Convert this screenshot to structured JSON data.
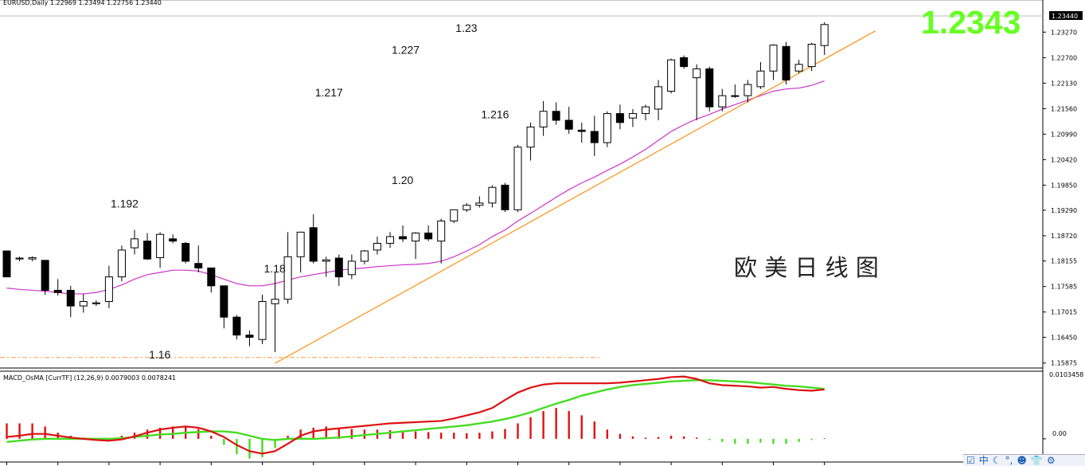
{
  "chart_data": {
    "type": "candlestick",
    "symbol_header": "EURUSD,Daily  1.22969 1.23494 1.22756 1.23440",
    "current_price_label": "1.23440",
    "big_price": "1.2343",
    "title_cn": "欧 美 日 线 图",
    "price_axis": {
      "ylim": [
        1.1587,
        1.2381
      ],
      "ticks": [
        "1.23270",
        "1.22700",
        "1.22130",
        "1.21560",
        "1.20990",
        "1.20420",
        "1.19850",
        "1.19290",
        "1.18720",
        "1.18155",
        "1.17585",
        "1.17015",
        "1.16450",
        "1.15875"
      ]
    },
    "annotations": [
      {
        "text": "1.192",
        "x": 9,
        "y": 1.1924
      },
      {
        "text": "1.217",
        "x": 25,
        "y": 1.2173
      },
      {
        "text": "1.227",
        "x": 31,
        "y": 1.2268
      },
      {
        "text": "1.23",
        "x": 36,
        "y": 1.2317
      },
      {
        "text": "1.216",
        "x": 38,
        "y": 1.2124
      },
      {
        "text": "1.20",
        "x": 31,
        "y": 1.1977
      },
      {
        "text": "1.18",
        "x": 21,
        "y": 1.1779
      },
      {
        "text": "1.16",
        "x": 12,
        "y": 1.1587
      }
    ],
    "candles": [
      {
        "o": 1.1838,
        "h": 1.1838,
        "l": 1.178,
        "c": 1.178
      },
      {
        "o": 1.182,
        "h": 1.1825,
        "l": 1.1815,
        "c": 1.1822
      },
      {
        "o": 1.182,
        "h": 1.1826,
        "l": 1.1815,
        "c": 1.1823
      },
      {
        "o": 1.1817,
        "h": 1.1817,
        "l": 1.174,
        "c": 1.175
      },
      {
        "o": 1.175,
        "h": 1.1775,
        "l": 1.1738,
        "c": 1.1745
      },
      {
        "o": 1.175,
        "h": 1.176,
        "l": 1.169,
        "c": 1.1715
      },
      {
        "o": 1.1715,
        "h": 1.1742,
        "l": 1.17,
        "c": 1.1725
      },
      {
        "o": 1.172,
        "h": 1.1728,
        "l": 1.1715,
        "c": 1.1722
      },
      {
        "o": 1.1725,
        "h": 1.1805,
        "l": 1.171,
        "c": 1.178
      },
      {
        "o": 1.178,
        "h": 1.185,
        "l": 1.177,
        "c": 1.184
      },
      {
        "o": 1.1845,
        "h": 1.1885,
        "l": 1.183,
        "c": 1.1865
      },
      {
        "o": 1.186,
        "h": 1.1878,
        "l": 1.1818,
        "c": 1.182
      },
      {
        "o": 1.1823,
        "h": 1.188,
        "l": 1.18,
        "c": 1.1875
      },
      {
        "o": 1.1865,
        "h": 1.1875,
        "l": 1.1855,
        "c": 1.186
      },
      {
        "o": 1.1855,
        "h": 1.1858,
        "l": 1.181,
        "c": 1.1815
      },
      {
        "o": 1.181,
        "h": 1.185,
        "l": 1.179,
        "c": 1.18
      },
      {
        "o": 1.18,
        "h": 1.18,
        "l": 1.1745,
        "c": 1.176
      },
      {
        "o": 1.176,
        "h": 1.176,
        "l": 1.1665,
        "c": 1.169
      },
      {
        "o": 1.169,
        "h": 1.1695,
        "l": 1.164,
        "c": 1.165
      },
      {
        "o": 1.165,
        "h": 1.166,
        "l": 1.1625,
        "c": 1.1645
      },
      {
        "o": 1.164,
        "h": 1.174,
        "l": 1.163,
        "c": 1.1725
      },
      {
        "o": 1.172,
        "h": 1.179,
        "l": 1.1612,
        "c": 1.173
      },
      {
        "o": 1.173,
        "h": 1.188,
        "l": 1.172,
        "c": 1.1825
      },
      {
        "o": 1.1825,
        "h": 1.188,
        "l": 1.179,
        "c": 1.188
      },
      {
        "o": 1.189,
        "h": 1.192,
        "l": 1.181,
        "c": 1.1815
      },
      {
        "o": 1.1815,
        "h": 1.1825,
        "l": 1.178,
        "c": 1.1818
      },
      {
        "o": 1.1822,
        "h": 1.183,
        "l": 1.176,
        "c": 1.178
      },
      {
        "o": 1.1785,
        "h": 1.183,
        "l": 1.1775,
        "c": 1.1815
      },
      {
        "o": 1.1815,
        "h": 1.184,
        "l": 1.1808,
        "c": 1.1838
      },
      {
        "o": 1.184,
        "h": 1.187,
        "l": 1.183,
        "c": 1.1855
      },
      {
        "o": 1.1855,
        "h": 1.188,
        "l": 1.1845,
        "c": 1.187
      },
      {
        "o": 1.187,
        "h": 1.1895,
        "l": 1.1858,
        "c": 1.1865
      },
      {
        "o": 1.186,
        "h": 1.188,
        "l": 1.182,
        "c": 1.1878
      },
      {
        "o": 1.1878,
        "h": 1.1895,
        "l": 1.186,
        "c": 1.1865
      },
      {
        "o": 1.186,
        "h": 1.191,
        "l": 1.181,
        "c": 1.1905
      },
      {
        "o": 1.1905,
        "h": 1.193,
        "l": 1.19,
        "c": 1.193
      },
      {
        "o": 1.193,
        "h": 1.1945,
        "l": 1.1925,
        "c": 1.194
      },
      {
        "o": 1.194,
        "h": 1.196,
        "l": 1.1935,
        "c": 1.1945
      },
      {
        "o": 1.1945,
        "h": 1.1985,
        "l": 1.1935,
        "c": 1.198
      },
      {
        "o": 1.1985,
        "h": 1.199,
        "l": 1.1925,
        "c": 1.193
      },
      {
        "o": 1.193,
        "h": 1.2075,
        "l": 1.1925,
        "c": 1.207
      },
      {
        "o": 1.207,
        "h": 1.2125,
        "l": 1.204,
        "c": 1.2115
      },
      {
        "o": 1.2115,
        "h": 1.2173,
        "l": 1.2095,
        "c": 1.215
      },
      {
        "o": 1.215,
        "h": 1.217,
        "l": 1.212,
        "c": 1.213
      },
      {
        "o": 1.213,
        "h": 1.216,
        "l": 1.21,
        "c": 1.211
      },
      {
        "o": 1.2108,
        "h": 1.2125,
        "l": 1.208,
        "c": 1.2105
      },
      {
        "o": 1.2105,
        "h": 1.214,
        "l": 1.205,
        "c": 1.208
      },
      {
        "o": 1.208,
        "h": 1.215,
        "l": 1.207,
        "c": 1.2145
      },
      {
        "o": 1.2145,
        "h": 1.2165,
        "l": 1.211,
        "c": 1.2125
      },
      {
        "o": 1.2135,
        "h": 1.2155,
        "l": 1.2115,
        "c": 1.2145
      },
      {
        "o": 1.2145,
        "h": 1.2165,
        "l": 1.213,
        "c": 1.216
      },
      {
        "o": 1.2155,
        "h": 1.222,
        "l": 1.213,
        "c": 1.2205
      },
      {
        "o": 1.2195,
        "h": 1.2268,
        "l": 1.219,
        "c": 1.2265
      },
      {
        "o": 1.227,
        "h": 1.2275,
        "l": 1.2245,
        "c": 1.225
      },
      {
        "o": 1.2225,
        "h": 1.2255,
        "l": 1.213,
        "c": 1.2245
      },
      {
        "o": 1.2245,
        "h": 1.225,
        "l": 1.215,
        "c": 1.216
      },
      {
        "o": 1.216,
        "h": 1.22,
        "l": 1.215,
        "c": 1.2185
      },
      {
        "o": 1.2185,
        "h": 1.221,
        "l": 1.218,
        "c": 1.2185
      },
      {
        "o": 1.2185,
        "h": 1.222,
        "l": 1.217,
        "c": 1.221
      },
      {
        "o": 1.2205,
        "h": 1.226,
        "l": 1.22,
        "c": 1.224
      },
      {
        "o": 1.224,
        "h": 1.23,
        "l": 1.222,
        "c": 1.2298
      },
      {
        "o": 1.2295,
        "h": 1.2305,
        "l": 1.221,
        "c": 1.222
      },
      {
        "o": 1.224,
        "h": 1.2265,
        "l": 1.2235,
        "c": 1.2255
      },
      {
        "o": 1.225,
        "h": 1.2303,
        "l": 1.224,
        "c": 1.23
      },
      {
        "o": 1.2297,
        "h": 1.2349,
        "l": 1.2276,
        "c": 1.2344
      }
    ],
    "moving_average": {
      "color": "#cc33cc",
      "values": [
        1.1755,
        1.1752,
        1.175,
        1.1748,
        1.1745,
        1.1742,
        1.1742,
        1.1745,
        1.1752,
        1.1762,
        1.1775,
        1.1785,
        1.179,
        1.1795,
        1.1795,
        1.1793,
        1.1785,
        1.1775,
        1.1765,
        1.176,
        1.176,
        1.1765,
        1.1773,
        1.178,
        1.1785,
        1.179,
        1.1795,
        1.1798,
        1.18,
        1.1803,
        1.1805,
        1.1807,
        1.1808,
        1.181,
        1.1815,
        1.1825,
        1.1838,
        1.1852,
        1.187,
        1.1885,
        1.1905,
        1.1922,
        1.194,
        1.1958,
        1.1975,
        1.199,
        1.2003,
        1.2018,
        1.2032,
        1.2048,
        1.2065,
        1.2085,
        1.2105,
        1.212,
        1.2133,
        1.2143,
        1.2155,
        1.2165,
        1.2175,
        1.2185,
        1.2195,
        1.22,
        1.2202,
        1.2208,
        1.2218
      ]
    },
    "trendline": {
      "color": "#ff8800",
      "from": {
        "x": 21,
        "y": 1.1587
      },
      "to": {
        "x": 68,
        "y": 1.233
      }
    },
    "dashed_level": {
      "color": "#ff9944",
      "y": 1.16
    },
    "macd": {
      "header": "MACD_OsMA [CurrTF] (12,26,9) 0.0079003 0.0078241",
      "top_label": "0.0103458",
      "zero_label": "0.00",
      "ylim": [
        -0.0035,
        0.0107
      ],
      "histogram": [
        0.0025,
        0.0025,
        0.0025,
        0.002,
        0.001,
        0.0005,
        0.0002,
        0.0001,
        -0.0001,
        0.0005,
        0.001,
        0.0015,
        0.0018,
        0.002,
        0.0019,
        0.0016,
        0.0005,
        -0.001,
        -0.0025,
        -0.0032,
        -0.003,
        -0.0015,
        0.0005,
        0.0015,
        0.0018,
        0.002,
        0.0018,
        0.0016,
        0.0015,
        0.0015,
        0.0014,
        0.0013,
        0.0012,
        0.0011,
        0.001,
        0.001,
        0.0009,
        0.001,
        0.0012,
        0.0016,
        0.0025,
        0.0035,
        0.0045,
        0.005,
        0.0045,
        0.0038,
        0.0028,
        0.0015,
        0.0008,
        0.0004,
        0.0002,
        0.0003,
        0.0005,
        0.0004,
        0.0002,
        -0.0002,
        -0.0005,
        -0.0008,
        -0.0008,
        -0.0006,
        -0.0008,
        -0.0008,
        -0.0005,
        -0.0002,
        0.0001
      ],
      "macd_line": {
        "color": "#dd1111",
        "values": [
          0.0003,
          0.0005,
          0.0008,
          0.0008,
          0.0005,
          0.0002,
          0.0,
          -0.0002,
          -0.0003,
          -0.0001,
          0.0004,
          0.001,
          0.0015,
          0.0018,
          0.002,
          0.0018,
          0.0012,
          0.0003,
          -0.001,
          -0.002,
          -0.0024,
          -0.002,
          -0.0008,
          0.0005,
          0.0012,
          0.0015,
          0.0017,
          0.0019,
          0.0021,
          0.0023,
          0.0025,
          0.0026,
          0.0027,
          0.0028,
          0.0029,
          0.0033,
          0.0038,
          0.0043,
          0.005,
          0.0063,
          0.0075,
          0.0083,
          0.0088,
          0.009,
          0.009,
          0.009,
          0.009,
          0.009,
          0.0091,
          0.0093,
          0.0095,
          0.0097,
          0.01,
          0.0101,
          0.0097,
          0.009,
          0.0087,
          0.0086,
          0.0085,
          0.0083,
          0.0084,
          0.0081,
          0.0079,
          0.0078,
          0.008
        ]
      },
      "signal_line": {
        "color": "#44dd22",
        "values": [
          -0.0005,
          -0.0003,
          -0.0001,
          0.0,
          0.0,
          0.0,
          0.0,
          0.0,
          0.0,
          0.0001,
          0.0003,
          0.0005,
          0.0007,
          0.0008,
          0.001,
          0.0011,
          0.0012,
          0.0012,
          0.001,
          0.0005,
          0.0,
          -0.0002,
          0.0,
          0.0,
          0.0,
          0.0001,
          0.0002,
          0.0004,
          0.0006,
          0.0008,
          0.001,
          0.0012,
          0.0014,
          0.0016,
          0.0018,
          0.002,
          0.0022,
          0.0025,
          0.0028,
          0.0032,
          0.0037,
          0.0043,
          0.005,
          0.0057,
          0.0063,
          0.007,
          0.0075,
          0.008,
          0.0084,
          0.0087,
          0.0089,
          0.0091,
          0.0093,
          0.0094,
          0.0095,
          0.0095,
          0.0094,
          0.0093,
          0.0092,
          0.009,
          0.0088,
          0.0086,
          0.0085,
          0.0083,
          0.0081
        ]
      }
    }
  },
  "tray": {
    "items": [
      {
        "name": "tray-edit-icon",
        "glyph": "☑"
      },
      {
        "name": "tray-ime-icon",
        "glyph": "中"
      },
      {
        "name": "tray-moon-icon",
        "glyph": "☾"
      },
      {
        "name": "tray-punct-icon",
        "glyph": "°,"
      },
      {
        "name": "tray-user-icon",
        "glyph": "☻"
      },
      {
        "name": "tray-shirt-icon",
        "glyph": "👕"
      },
      {
        "name": "tray-settings-icon",
        "glyph": "⚙"
      }
    ]
  }
}
